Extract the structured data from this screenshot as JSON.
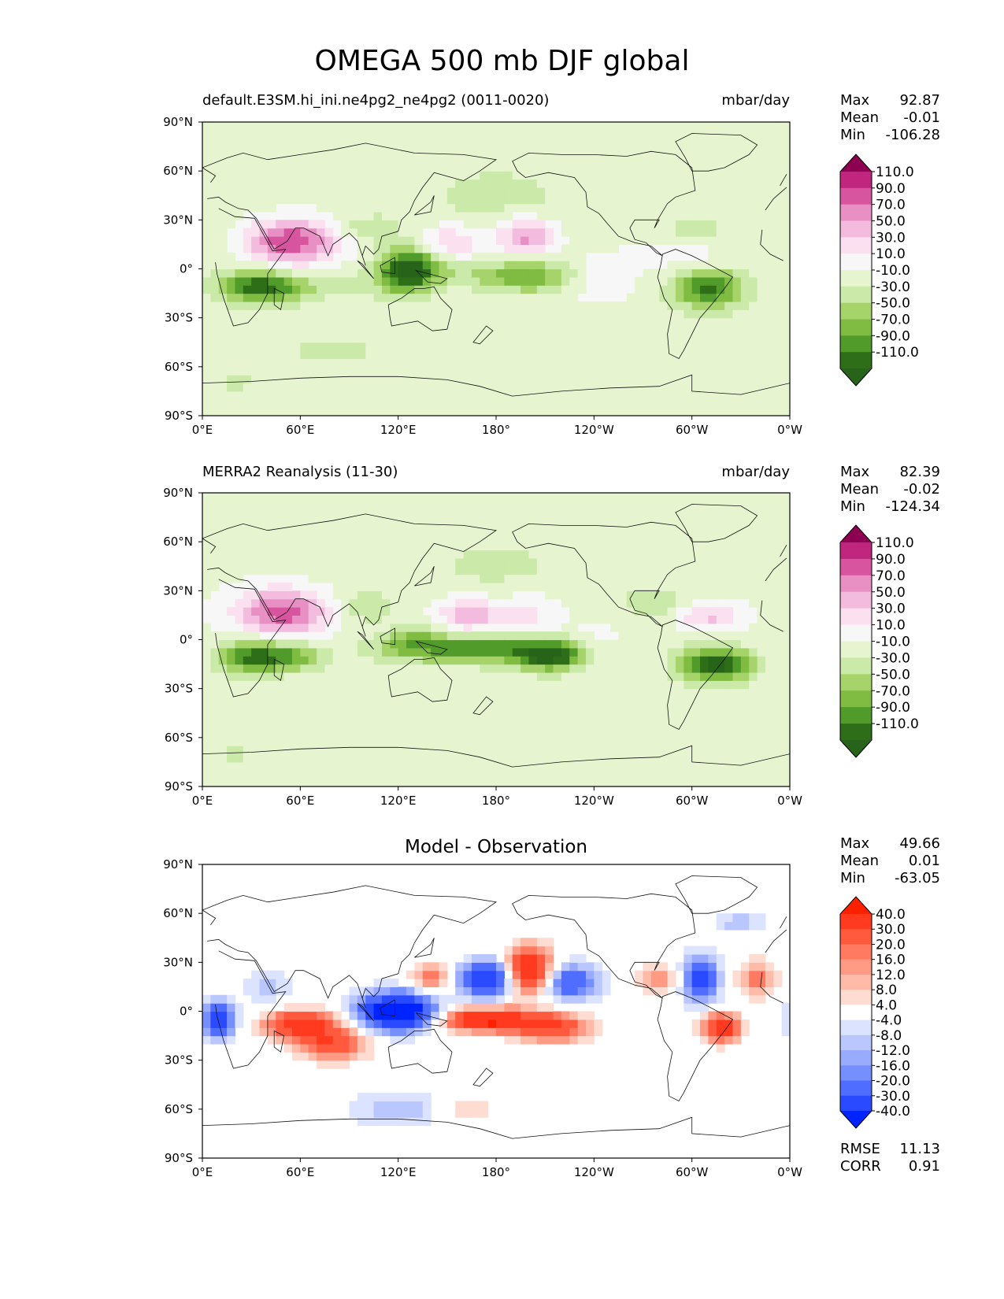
{
  "figure": {
    "title": "OMEGA 500 mb DJF global"
  },
  "axes": {
    "lat_ticks": [
      "90°N",
      "60°N",
      "30°N",
      "0°",
      "30°S",
      "60°S",
      "90°S"
    ],
    "lon_ticks": [
      "0°E",
      "60°E",
      "120°E",
      "180°",
      "120°W",
      "60°W",
      "0°W"
    ]
  },
  "panels": [
    {
      "id": "test",
      "title_left": "default.E3SM.hi_ini.ne4pg2_ne4pg2 (0011-0020)",
      "title_right": "mbar/day",
      "title_center": "",
      "stats": [
        {
          "label": "Max",
          "value": "92.87"
        },
        {
          "label": "Mean",
          "value": "-0.01"
        },
        {
          "label": "Min",
          "value": "-106.28"
        }
      ],
      "colorbar_ticks": [
        "110.0",
        "90.0",
        "70.0",
        "50.0",
        "30.0",
        "10.0",
        "-10.0",
        "-30.0",
        "-50.0",
        "-70.0",
        "-90.0",
        "-110.0"
      ],
      "colorbar_colors": [
        "#8e0152",
        "#c51b7d",
        "#de77ae",
        "#f1b6da",
        "#fde0ef",
        "#f7f7f7",
        "#e6f5d0",
        "#b8e186",
        "#7fbc41",
        "#4d9221",
        "#276419"
      ],
      "colorbar_colors_full": [
        "#8e0152",
        "#c0267e",
        "#d7559f",
        "#e88fc3",
        "#f3bbde",
        "#fbe1ef",
        "#f7f7f7",
        "#e6f5d0",
        "#cbe9a8",
        "#a6d46a",
        "#7fbc41",
        "#519b2a",
        "#2e6e18",
        "#276419"
      ]
    },
    {
      "id": "reference",
      "title_left": "MERRA2 Reanalysis (11-30)",
      "title_right": "mbar/day",
      "title_center": "",
      "stats": [
        {
          "label": "Max",
          "value": "82.39"
        },
        {
          "label": "Mean",
          "value": "-0.02"
        },
        {
          "label": "Min",
          "value": "-124.34"
        }
      ],
      "colorbar_ticks": [
        "110.0",
        "90.0",
        "70.0",
        "50.0",
        "30.0",
        "10.0",
        "-10.0",
        "-30.0",
        "-50.0",
        "-70.0",
        "-90.0",
        "-110.0"
      ],
      "colorbar_colors_full": [
        "#8e0152",
        "#c0267e",
        "#d7559f",
        "#e88fc3",
        "#f3bbde",
        "#fbe1ef",
        "#f7f7f7",
        "#e6f5d0",
        "#cbe9a8",
        "#a6d46a",
        "#7fbc41",
        "#519b2a",
        "#2e6e18",
        "#276419"
      ]
    },
    {
      "id": "difference",
      "title_left": "",
      "title_right": "",
      "title_center": "Model - Observation",
      "stats": [
        {
          "label": "Max",
          "value": "49.66"
        },
        {
          "label": "Mean",
          "value": "0.01"
        },
        {
          "label": "Min",
          "value": "-63.05"
        }
      ],
      "extra_stats": [
        {
          "label": "RMSE",
          "value": "11.13"
        },
        {
          "label": "CORR",
          "value": "0.91"
        }
      ],
      "colorbar_ticks": [
        "40.0",
        "30.0",
        "20.0",
        "16.0",
        "12.0",
        "8.0",
        "4.0",
        "-4.0",
        "-8.0",
        "-12.0",
        "-16.0",
        "-20.0",
        "-30.0",
        "-40.0"
      ],
      "colorbar_colors_full": [
        "#ff2000",
        "#ff3a1e",
        "#ff5a3e",
        "#ff7a60",
        "#ff9a84",
        "#ffbaa8",
        "#ffdcd2",
        "#ffffff",
        "#dce3ff",
        "#bac7ff",
        "#98abff",
        "#768fff",
        "#4f6dff",
        "#2a4aff",
        "#0024ff"
      ]
    }
  ],
  "chart_data": [
    {
      "type": "heatmap",
      "title": "default.E3SM.hi_ini.ne4pg2_ne4pg2 (0011-0020)",
      "units": "mbar/day",
      "xlim": [
        0,
        360
      ],
      "ylim": [
        -90,
        90
      ],
      "levels": [
        -110,
        -90,
        -70,
        -50,
        -30,
        -10,
        10,
        30,
        50,
        70,
        90,
        110
      ],
      "features": [
        {
          "lon": 52,
          "lat": 17,
          "sx": 18,
          "sy": 9,
          "v": 92
        },
        {
          "lon": 73,
          "lat": 18,
          "sx": 25,
          "sy": 12,
          "v": 25
        },
        {
          "lon": 150,
          "lat": 15,
          "sx": 15,
          "sy": 8,
          "v": 62
        },
        {
          "lon": 198,
          "lat": 20,
          "sx": 12,
          "sy": 8,
          "v": 75
        },
        {
          "lon": 240,
          "lat": -5,
          "sx": 18,
          "sy": 10,
          "v": 40
        },
        {
          "lon": 295,
          "lat": 12,
          "sx": 20,
          "sy": 8,
          "v": 35
        },
        {
          "lon": 175,
          "lat": -10,
          "sx": 40,
          "sy": 7,
          "v": 15
        },
        {
          "lon": 40,
          "lat": -8,
          "sx": 30,
          "sy": 10,
          "v": 12
        },
        {
          "lon": 30,
          "lat": -10,
          "sx": 15,
          "sy": 7,
          "v": -95
        },
        {
          "lon": 50,
          "lat": -12,
          "sx": 15,
          "sy": 6,
          "v": -55
        },
        {
          "lon": 90,
          "lat": -8,
          "sx": 22,
          "sy": 6,
          "v": -20
        },
        {
          "lon": 125,
          "lat": -2,
          "sx": 12,
          "sy": 9,
          "v": -105
        },
        {
          "lon": 135,
          "lat": 5,
          "sx": 16,
          "sy": 10,
          "v": -45
        },
        {
          "lon": 200,
          "lat": -5,
          "sx": 28,
          "sy": 7,
          "v": -80
        },
        {
          "lon": 310,
          "lat": -12,
          "sx": 14,
          "sy": 8,
          "v": -100
        },
        {
          "lon": 300,
          "lat": 20,
          "sx": 15,
          "sy": 8,
          "v": -30
        },
        {
          "lon": 100,
          "lat": 25,
          "sx": 15,
          "sy": 6,
          "v": -35
        },
        {
          "lon": 180,
          "lat": 45,
          "sx": 30,
          "sy": 12,
          "v": -18
        },
        {
          "lon": 80,
          "lat": -50,
          "sx": 25,
          "sy": 8,
          "v": -15
        },
        {
          "lon": 20,
          "lat": -70,
          "sx": 20,
          "sy": 5,
          "v": -12
        }
      ]
    },
    {
      "type": "heatmap",
      "title": "MERRA2 Reanalysis (11-30)",
      "units": "mbar/day",
      "xlim": [
        0,
        360
      ],
      "ylim": [
        -90,
        90
      ],
      "levels": [
        -110,
        -90,
        -70,
        -50,
        -30,
        -10,
        10,
        30,
        50,
        70,
        90,
        110
      ],
      "features": [
        {
          "lon": 52,
          "lat": 17,
          "sx": 18,
          "sy": 9,
          "v": 80
        },
        {
          "lon": 38,
          "lat": 20,
          "sx": 25,
          "sy": 12,
          "v": 25
        },
        {
          "lon": 163,
          "lat": 15,
          "sx": 14,
          "sy": 8,
          "v": 62
        },
        {
          "lon": 200,
          "lat": 15,
          "sx": 14,
          "sy": 10,
          "v": 35
        },
        {
          "lon": 240,
          "lat": -5,
          "sx": 16,
          "sy": 10,
          "v": 30
        },
        {
          "lon": 310,
          "lat": 15,
          "sx": 16,
          "sy": 7,
          "v": 55
        },
        {
          "lon": 45,
          "lat": -5,
          "sx": 30,
          "sy": 12,
          "v": 14
        },
        {
          "lon": 30,
          "lat": -10,
          "sx": 14,
          "sy": 7,
          "v": -100
        },
        {
          "lon": 55,
          "lat": -10,
          "sx": 14,
          "sy": 6,
          "v": -70
        },
        {
          "lon": 170,
          "lat": -5,
          "sx": 40,
          "sy": 6,
          "v": -85
        },
        {
          "lon": 215,
          "lat": -10,
          "sx": 15,
          "sy": 6,
          "v": -110
        },
        {
          "lon": 130,
          "lat": 0,
          "sx": 12,
          "sy": 6,
          "v": -35
        },
        {
          "lon": 315,
          "lat": -15,
          "sx": 14,
          "sy": 7,
          "v": -124
        },
        {
          "lon": 280,
          "lat": 22,
          "sx": 14,
          "sy": 7,
          "v": -30
        },
        {
          "lon": 100,
          "lat": 20,
          "sx": 12,
          "sy": 6,
          "v": -30
        },
        {
          "lon": 180,
          "lat": 45,
          "sx": 30,
          "sy": 12,
          "v": -15
        },
        {
          "lon": 20,
          "lat": -70,
          "sx": 20,
          "sy": 5,
          "v": -12
        }
      ]
    },
    {
      "type": "heatmap",
      "title": "Model - Observation",
      "units": "mbar/day",
      "xlim": [
        0,
        360
      ],
      "ylim": [
        -90,
        90
      ],
      "levels": [
        -40,
        -30,
        -20,
        -16,
        -12,
        -8,
        -4,
        4,
        8,
        12,
        16,
        20,
        30,
        40
      ],
      "features": [
        {
          "lon": 200,
          "lat": 25,
          "sx": 10,
          "sy": 10,
          "v": 45
        },
        {
          "lon": 175,
          "lat": -5,
          "sx": 20,
          "sy": 5,
          "v": 45
        },
        {
          "lon": 215,
          "lat": -10,
          "sx": 15,
          "sy": 6,
          "v": 30
        },
        {
          "lon": 60,
          "lat": -8,
          "sx": 15,
          "sy": 6,
          "v": 38
        },
        {
          "lon": 80,
          "lat": -20,
          "sx": 14,
          "sy": 7,
          "v": 28
        },
        {
          "lon": 318,
          "lat": -10,
          "sx": 8,
          "sy": 6,
          "v": 40
        },
        {
          "lon": 140,
          "lat": 20,
          "sx": 8,
          "sy": 7,
          "v": 20
        },
        {
          "lon": 280,
          "lat": 20,
          "sx": 10,
          "sy": 6,
          "v": 15
        },
        {
          "lon": 340,
          "lat": 20,
          "sx": 8,
          "sy": 8,
          "v": 18
        },
        {
          "lon": 120,
          "lat": 0,
          "sx": 16,
          "sy": 8,
          "v": -60
        },
        {
          "lon": 175,
          "lat": 20,
          "sx": 12,
          "sy": 8,
          "v": -42
        },
        {
          "lon": 225,
          "lat": 18,
          "sx": 12,
          "sy": 8,
          "v": -30
        },
        {
          "lon": 305,
          "lat": 20,
          "sx": 8,
          "sy": 10,
          "v": -35
        },
        {
          "lon": 10,
          "lat": -5,
          "sx": 7,
          "sy": 8,
          "v": -35
        },
        {
          "lon": 120,
          "lat": -60,
          "sx": 20,
          "sy": 8,
          "v": -12
        },
        {
          "lon": 40,
          "lat": 15,
          "sx": 10,
          "sy": 8,
          "v": -10
        },
        {
          "lon": 160,
          "lat": -60,
          "sx": 15,
          "sy": 5,
          "v": 8
        },
        {
          "lon": 330,
          "lat": 55,
          "sx": 10,
          "sy": 5,
          "v": -12
        }
      ]
    }
  ]
}
